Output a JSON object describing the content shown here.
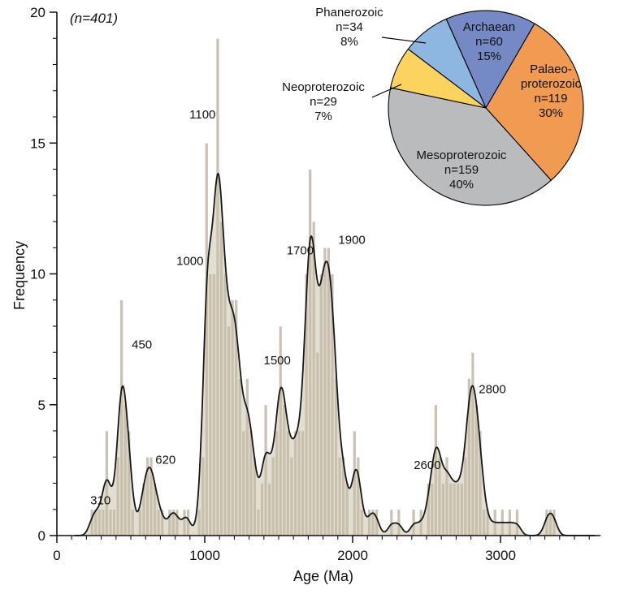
{
  "annotations": {
    "sample_size": "(n=401)"
  },
  "axes": {
    "x": {
      "label": "Age (Ma)",
      "min": 0,
      "max": 3600,
      "major_ticks": [
        0,
        1000,
        2000,
        3000
      ],
      "minor_step": 100
    },
    "y": {
      "label": "Frequency",
      "min": 0,
      "max": 20,
      "major_ticks": [
        0,
        5,
        10,
        15,
        20
      ],
      "minor_step": 1
    }
  },
  "chart_data": [
    {
      "type": "bar",
      "name": "zircon-age-histogram",
      "n_total": 401,
      "bin_width_ma": 25,
      "bins_format": "[bin_start_ma, count]",
      "bins": [
        [
          225,
          1
        ],
        [
          250,
          1
        ],
        [
          275,
          1
        ],
        [
          300,
          1
        ],
        [
          325,
          4
        ],
        [
          350,
          1
        ],
        [
          375,
          1
        ],
        [
          400,
          3
        ],
        [
          425,
          9
        ],
        [
          450,
          5
        ],
        [
          475,
          4
        ],
        [
          500,
          1
        ],
        [
          550,
          1
        ],
        [
          575,
          2
        ],
        [
          600,
          3
        ],
        [
          625,
          3
        ],
        [
          650,
          2
        ],
        [
          675,
          1
        ],
        [
          700,
          1
        ],
        [
          750,
          1
        ],
        [
          775,
          1
        ],
        [
          800,
          1
        ],
        [
          850,
          1
        ],
        [
          875,
          1
        ],
        [
          950,
          1
        ],
        [
          975,
          3
        ],
        [
          1000,
          15
        ],
        [
          1025,
          10
        ],
        [
          1050,
          10
        ],
        [
          1075,
          19
        ],
        [
          1100,
          12
        ],
        [
          1125,
          10
        ],
        [
          1150,
          8
        ],
        [
          1175,
          9
        ],
        [
          1200,
          9
        ],
        [
          1225,
          6
        ],
        [
          1250,
          4
        ],
        [
          1275,
          6
        ],
        [
          1300,
          4
        ],
        [
          1325,
          3
        ],
        [
          1350,
          1
        ],
        [
          1375,
          2
        ],
        [
          1400,
          5
        ],
        [
          1425,
          2
        ],
        [
          1450,
          3
        ],
        [
          1475,
          4
        ],
        [
          1500,
          8
        ],
        [
          1525,
          5
        ],
        [
          1550,
          4
        ],
        [
          1575,
          3
        ],
        [
          1600,
          4
        ],
        [
          1625,
          4
        ],
        [
          1650,
          4
        ],
        [
          1675,
          10
        ],
        [
          1700,
          14
        ],
        [
          1725,
          12
        ],
        [
          1750,
          7
        ],
        [
          1775,
          10
        ],
        [
          1800,
          11
        ],
        [
          1825,
          11
        ],
        [
          1850,
          10
        ],
        [
          1875,
          6
        ],
        [
          1900,
          3
        ],
        [
          1925,
          3
        ],
        [
          1950,
          2
        ],
        [
          2000,
          4
        ],
        [
          2025,
          3
        ],
        [
          2050,
          1
        ],
        [
          2100,
          1
        ],
        [
          2125,
          1
        ],
        [
          2150,
          1
        ],
        [
          2250,
          1
        ],
        [
          2300,
          1
        ],
        [
          2400,
          1
        ],
        [
          2450,
          1
        ],
        [
          2500,
          2
        ],
        [
          2525,
          2
        ],
        [
          2550,
          5
        ],
        [
          2575,
          3
        ],
        [
          2600,
          2
        ],
        [
          2625,
          3
        ],
        [
          2650,
          2
        ],
        [
          2675,
          2
        ],
        [
          2700,
          2
        ],
        [
          2725,
          2
        ],
        [
          2750,
          3
        ],
        [
          2775,
          6
        ],
        [
          2800,
          7
        ],
        [
          2825,
          5
        ],
        [
          2850,
          4
        ],
        [
          2875,
          1
        ],
        [
          2900,
          1
        ],
        [
          2950,
          1
        ],
        [
          3000,
          1
        ],
        [
          3050,
          1
        ],
        [
          3100,
          1
        ],
        [
          3300,
          1
        ],
        [
          3325,
          1
        ],
        [
          3350,
          1
        ]
      ],
      "kde_overlay": {
        "bandwidth_ma": 27,
        "line_color": "#161616",
        "area_color": "#c7bda5",
        "area_opacity": 0.5
      },
      "bar_color": "#c9c3b5",
      "bar_edge_color": "#ffffff",
      "peak_labels": [
        {
          "text": "310",
          "age": 295,
          "freq": 1.35
        },
        {
          "text": "450",
          "age": 575,
          "freq": 7.3
        },
        {
          "text": "620",
          "age": 735,
          "freq": 2.9
        },
        {
          "text": "1000",
          "age": 900,
          "freq": 10.5
        },
        {
          "text": "1100",
          "age": 985,
          "freq": 16.1
        },
        {
          "text": "1500",
          "age": 1490,
          "freq": 6.7
        },
        {
          "text": "1700",
          "age": 1645,
          "freq": 10.9
        },
        {
          "text": "1900",
          "age": 1995,
          "freq": 11.3
        },
        {
          "text": "2600",
          "age": 2505,
          "freq": 2.7
        },
        {
          "text": "2800",
          "age": 2945,
          "freq": 5.6
        }
      ]
    },
    {
      "type": "pie",
      "name": "eon-proportions",
      "start_angle_deg": -24,
      "clockwise": true,
      "slices": [
        {
          "label": "Archaean",
          "n": 60,
          "pct": 15,
          "color": "#7589c4",
          "label_lines": [
            "Archaean",
            "n=60",
            "15%"
          ],
          "label_placement": "inside"
        },
        {
          "label": "Palaeoproterozoic",
          "n": 119,
          "pct": 30,
          "color": "#f09a52",
          "label_lines": [
            "Palaeo-",
            "proterozoic",
            "n=119",
            "30%"
          ],
          "label_placement": "inside"
        },
        {
          "label": "Mesoproterozoic",
          "n": 159,
          "pct": 40,
          "color": "#b9bbbd",
          "label_lines": [
            "Mesoproterozoic",
            "n=159",
            "40%"
          ],
          "label_placement": "inside"
        },
        {
          "label": "Neoproterozoic",
          "n": 29,
          "pct": 7,
          "color": "#fcd35f",
          "label_lines": [
            "Neoproterozoic",
            "n=29",
            "7%"
          ],
          "label_placement": "outside-left"
        },
        {
          "label": "Phanerozoic",
          "n": 34,
          "pct": 8,
          "color": "#8db6e0",
          "label_lines": [
            "Phanerozoic",
            "n=34",
            "8%"
          ],
          "label_placement": "outside-top-left"
        }
      ]
    }
  ]
}
